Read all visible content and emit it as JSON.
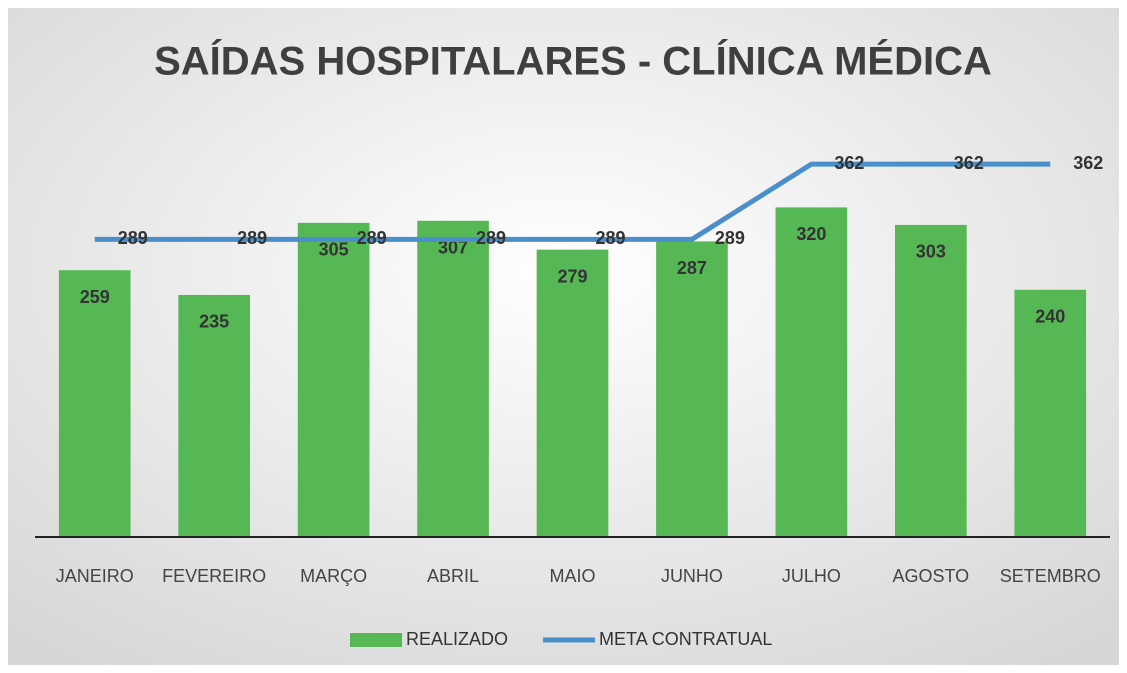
{
  "chart_data": {
    "type": "bar",
    "title": "SAÍDAS HOSPITALARES - CLÍNICA MÉDICA",
    "categories": [
      "JANEIRO",
      "FEVEREIRO",
      "MARÇO",
      "ABRIL",
      "MAIO",
      "JUNHO",
      "JULHO",
      "AGOSTO",
      "SETEMBRO"
    ],
    "series": [
      {
        "name": "REALIZADO",
        "type": "bar",
        "color": "#56b854",
        "values": [
          259,
          235,
          305,
          307,
          279,
          287,
          320,
          303,
          240
        ]
      },
      {
        "name": "META CONTRATUAL",
        "type": "line",
        "color": "#4a8fc9",
        "values": [
          289,
          289,
          289,
          289,
          289,
          289,
          362,
          362,
          362
        ]
      }
    ],
    "ylim": [
      0,
      400
    ],
    "legend": "bottom"
  }
}
